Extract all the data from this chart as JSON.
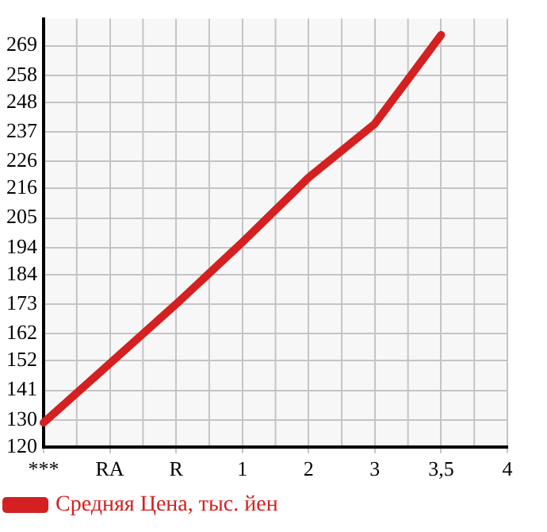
{
  "chart_data": {
    "type": "line",
    "categories": [
      "***",
      "RA",
      "R",
      "1",
      "2",
      "3",
      "3,5",
      "4"
    ],
    "series": [
      {
        "name": "Средняя Цена, тыс. йен",
        "color": "#d42020",
        "values": [
          129,
          151,
          173,
          196,
          220,
          240,
          273,
          null
        ]
      }
    ],
    "ylim": [
      120,
      279
    ],
    "yticks": [
      120,
      130,
      141,
      152,
      162,
      173,
      184,
      194,
      205,
      216,
      226,
      237,
      248,
      258,
      269
    ],
    "grid": true,
    "legend": "bottom",
    "marker": "none",
    "line_style": "solid"
  }
}
